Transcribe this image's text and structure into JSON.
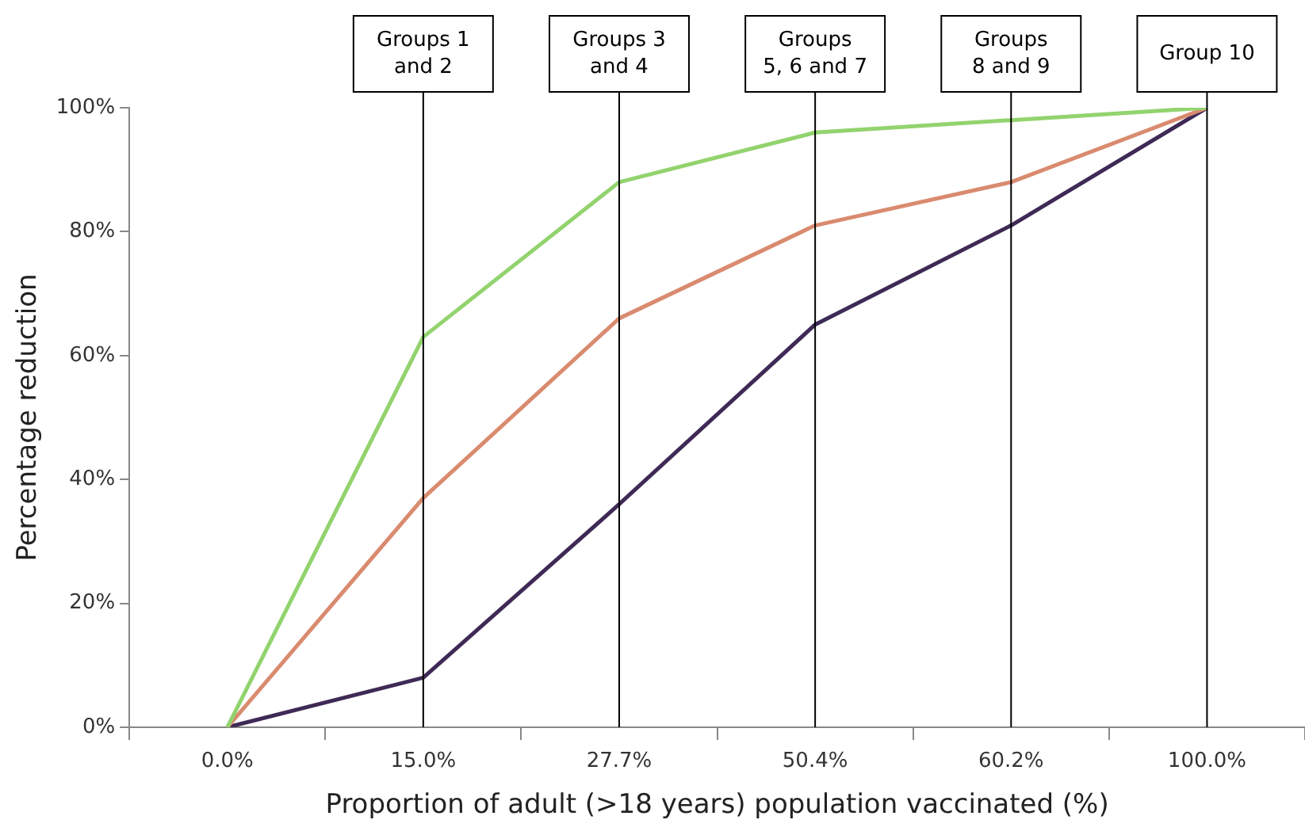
{
  "chart_data": {
    "type": "line",
    "xlabel": "Proportion of adult (>18 years) population vaccinated (%)",
    "ylabel": "Percentage reduction",
    "categories": [
      "0.0%",
      "15.0%",
      "27.7%",
      "50.4%",
      "60.2%",
      "100.0%"
    ],
    "series": [
      {
        "color": "#92d36e",
        "values": [
          0,
          63,
          88,
          96,
          98,
          100
        ]
      },
      {
        "color": "#d98b6f",
        "values": [
          0,
          37,
          66,
          81,
          88,
          100
        ]
      },
      {
        "color": "#3f2a56",
        "values": [
          0,
          8,
          36,
          65,
          81,
          100
        ]
      }
    ],
    "ylim": [
      0,
      100
    ],
    "yticks": [
      {
        "value": 0,
        "label": "0%"
      },
      {
        "value": 20,
        "label": "20%"
      },
      {
        "value": 40,
        "label": "40%"
      },
      {
        "value": 60,
        "label": "60%"
      },
      {
        "value": 80,
        "label": "80%"
      },
      {
        "value": 100,
        "label": "100%"
      }
    ],
    "ref_lines": [
      {
        "axis": "x",
        "value": "15.0%",
        "label": "Groups 1\nand 2",
        "color": "#000000"
      },
      {
        "axis": "x",
        "value": "27.7%",
        "label": "Groups 3\nand 4",
        "color": "#000000"
      },
      {
        "axis": "x",
        "value": "50.4%",
        "label": "Groups\n5, 6 and 7",
        "color": "#000000"
      },
      {
        "axis": "x",
        "value": "60.2%",
        "label": "Groups\n8 and 9",
        "color": "#000000"
      },
      {
        "axis": "x",
        "value": "100.0%",
        "label": "Group 10",
        "color": "#000000"
      }
    ],
    "grid": false,
    "legend": false,
    "marker": "none",
    "line_style": "solid"
  }
}
